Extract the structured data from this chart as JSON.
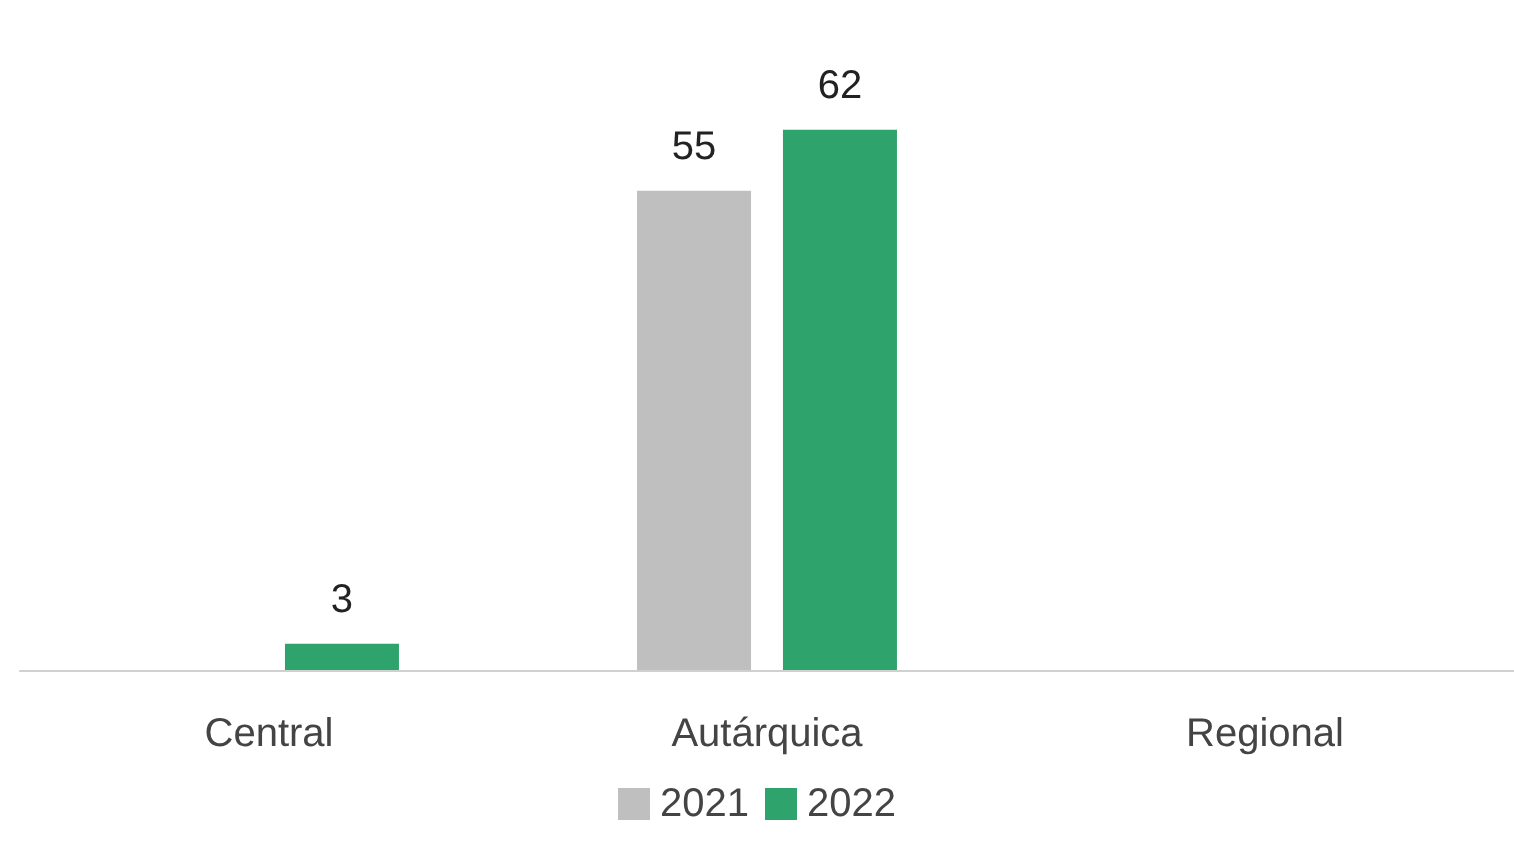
{
  "chart_data": {
    "type": "bar",
    "categories": [
      "Central",
      "Autárquica",
      "Regional"
    ],
    "series": [
      {
        "name": "2021",
        "color": "#bfbfbf",
        "values": [
          null,
          55,
          null
        ]
      },
      {
        "name": "2022",
        "color": "#2ea36b",
        "values": [
          3,
          62,
          null
        ]
      }
    ],
    "data_labels": true,
    "legend": "bottom"
  }
}
